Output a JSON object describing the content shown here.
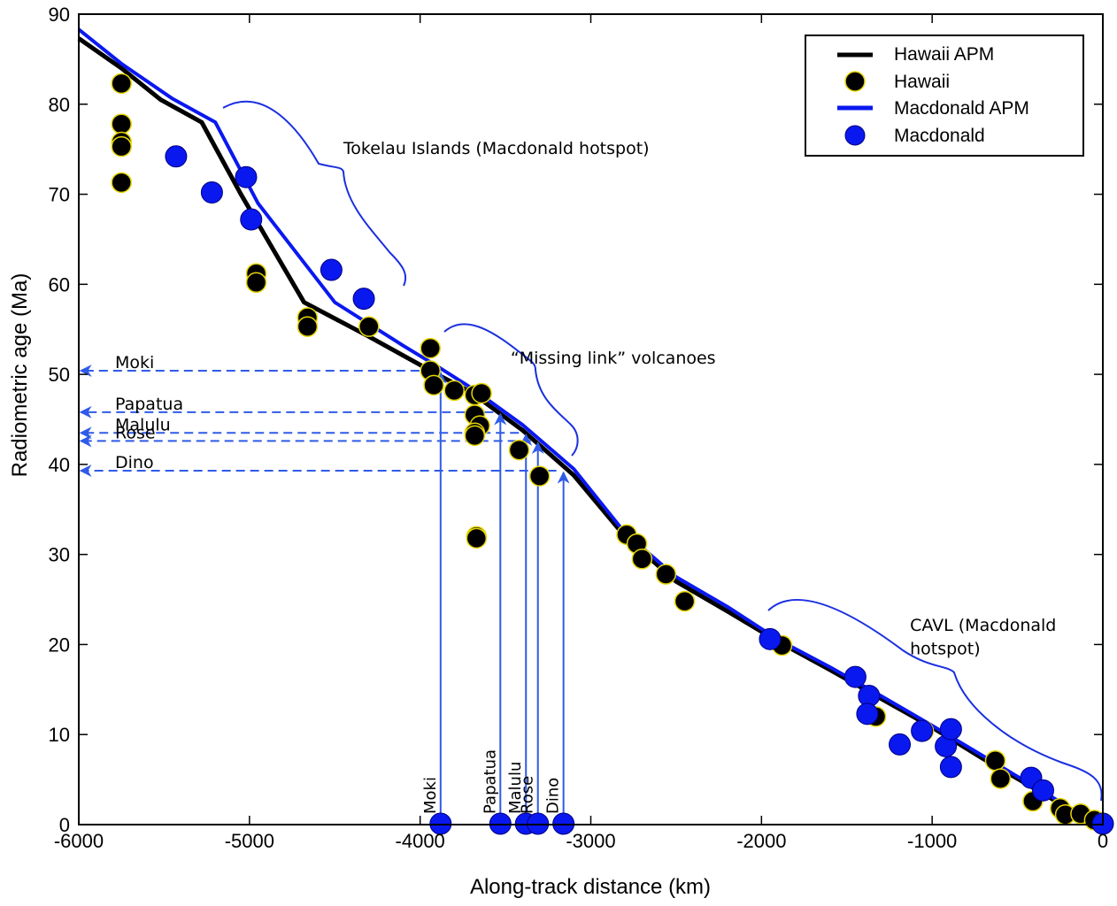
{
  "chart_data": {
    "type": "scatter",
    "xlabel": "Along-track distance (km)",
    "ylabel": "Radiometric age (Ma)",
    "xlim": [
      -6000,
      0
    ],
    "ylim": [
      0,
      90
    ],
    "xticks": [
      -6000,
      -5000,
      -4000,
      -3000,
      -2000,
      -1000,
      0
    ],
    "yticks": [
      0,
      10,
      20,
      30,
      40,
      50,
      60,
      70,
      80,
      90
    ],
    "grid": false,
    "legend_position": "top-right",
    "legend": [
      "Hawaii APM",
      "Hawaii",
      "Macdonald APM",
      "Macdonald"
    ],
    "colors": {
      "hawaii": "#000000",
      "hawaii_edge": "#e6d600",
      "macdonald": "#0a18f0",
      "macdonald_edge": "#000080",
      "arrow": "#2f5be8",
      "bracket": "#1a2fe0"
    },
    "series": [
      {
        "name": "Hawaii APM",
        "kind": "line",
        "points": [
          [
            -6000,
            87.3
          ],
          [
            -5750,
            84.0
          ],
          [
            -5520,
            80.5
          ],
          [
            -5280,
            78.0
          ],
          [
            -5050,
            70.0
          ],
          [
            -4680,
            58.0
          ],
          [
            -4300,
            54.2
          ],
          [
            -3900,
            50.0
          ],
          [
            -3700,
            48.0
          ],
          [
            -3400,
            43.8
          ],
          [
            -3100,
            38.8
          ],
          [
            -2800,
            32.0
          ],
          [
            -2500,
            27.0
          ],
          [
            -2200,
            23.7
          ],
          [
            -1900,
            20.3
          ],
          [
            -1600,
            17.2
          ],
          [
            -1300,
            14.0
          ],
          [
            -1000,
            10.8
          ],
          [
            -700,
            7.3
          ],
          [
            -400,
            4.0
          ],
          [
            -150,
            1.2
          ],
          [
            0,
            0
          ]
        ]
      },
      {
        "name": "Hawaii",
        "kind": "points",
        "points": [
          [
            -5750,
            82.3
          ],
          [
            -5750,
            77.8
          ],
          [
            -5750,
            75.8
          ],
          [
            -5750,
            75.3
          ],
          [
            -5750,
            71.3
          ],
          [
            -4960,
            61.2
          ],
          [
            -4960,
            60.2
          ],
          [
            -4660,
            56.3
          ],
          [
            -4660,
            55.3
          ],
          [
            -4300,
            55.3
          ],
          [
            -3940,
            52.9
          ],
          [
            -3940,
            50.4
          ],
          [
            -3920,
            48.8
          ],
          [
            -3800,
            48.2
          ],
          [
            -3680,
            47.7
          ],
          [
            -3640,
            47.9
          ],
          [
            -3680,
            45.5
          ],
          [
            -3650,
            44.3
          ],
          [
            -3680,
            43.5
          ],
          [
            -3680,
            43.2
          ],
          [
            -3420,
            41.6
          ],
          [
            -3300,
            38.7
          ],
          [
            -3670,
            32.0
          ],
          [
            -3670,
            31.8
          ],
          [
            -2790,
            32.2
          ],
          [
            -2730,
            31.2
          ],
          [
            -2700,
            29.5
          ],
          [
            -2560,
            27.8
          ],
          [
            -2450,
            24.8
          ],
          [
            -1880,
            19.9
          ],
          [
            -1330,
            12.0
          ],
          [
            -1050,
            10.4
          ],
          [
            -630,
            7.1
          ],
          [
            -600,
            5.1
          ],
          [
            -410,
            2.6
          ],
          [
            -250,
            1.8
          ],
          [
            -220,
            1.1
          ],
          [
            -130,
            1.2
          ],
          [
            -50,
            0.5
          ],
          [
            0,
            0.2
          ]
        ]
      },
      {
        "name": "Macdonald APM",
        "kind": "line",
        "points": [
          [
            -6000,
            88.3
          ],
          [
            -5750,
            84.5
          ],
          [
            -5450,
            80.6
          ],
          [
            -5200,
            78.0
          ],
          [
            -4950,
            69.0
          ],
          [
            -4500,
            58.0
          ],
          [
            -4100,
            53.2
          ],
          [
            -3900,
            50.9
          ],
          [
            -3700,
            48.5
          ],
          [
            -3400,
            44.4
          ],
          [
            -3100,
            39.5
          ],
          [
            -2800,
            32.4
          ],
          [
            -2500,
            27.5
          ],
          [
            -2200,
            24.2
          ],
          [
            -1900,
            20.5
          ],
          [
            -1600,
            17.5
          ],
          [
            -1300,
            14.3
          ],
          [
            -1000,
            11.0
          ],
          [
            -700,
            7.6
          ],
          [
            -400,
            4.2
          ],
          [
            -150,
            1.4
          ],
          [
            0,
            0
          ]
        ]
      },
      {
        "name": "Macdonald",
        "kind": "points",
        "points": [
          [
            -5430,
            74.2
          ],
          [
            -5220,
            70.2
          ],
          [
            -5020,
            71.9
          ],
          [
            -4990,
            67.2
          ],
          [
            -4520,
            61.6
          ],
          [
            -4330,
            58.4
          ],
          [
            -1950,
            20.6
          ],
          [
            -1450,
            16.4
          ],
          [
            -1370,
            14.3
          ],
          [
            -1380,
            12.3
          ],
          [
            -1190,
            8.9
          ],
          [
            -1060,
            10.4
          ],
          [
            -920,
            8.7
          ],
          [
            -890,
            10.6
          ],
          [
            -890,
            6.4
          ],
          [
            -420,
            5.2
          ],
          [
            -350,
            3.8
          ],
          [
            -3880,
            0.1
          ],
          [
            -3530,
            0.1
          ],
          [
            -3380,
            0.1
          ],
          [
            -3310,
            0.1
          ],
          [
            -3160,
            0.1
          ],
          [
            0,
            0.1
          ]
        ]
      }
    ],
    "missing_link_volcanoes": [
      {
        "name": "Moki",
        "x": -3880,
        "age": 50.4
      },
      {
        "name": "Papatua",
        "x": -3530,
        "age": 45.8
      },
      {
        "name": "Malulu",
        "x": -3380,
        "age": 43.5
      },
      {
        "name": "Rose",
        "x": -3310,
        "age": 42.6
      },
      {
        "name": "Dino",
        "x": -3160,
        "age": 39.3
      }
    ],
    "annotations": [
      {
        "text": "Tokelau Islands (Macdonald hotspot)",
        "x": -4450,
        "y": 74.5
      },
      {
        "text": "“Missing link” volcanoes",
        "x": -3470,
        "y": 51.2
      },
      {
        "text": "CAVL (Macdonald",
        "x": -1130,
        "y": 21.5
      },
      {
        "text": "hotspot)",
        "x": -1130,
        "y": 18.9
      }
    ]
  }
}
